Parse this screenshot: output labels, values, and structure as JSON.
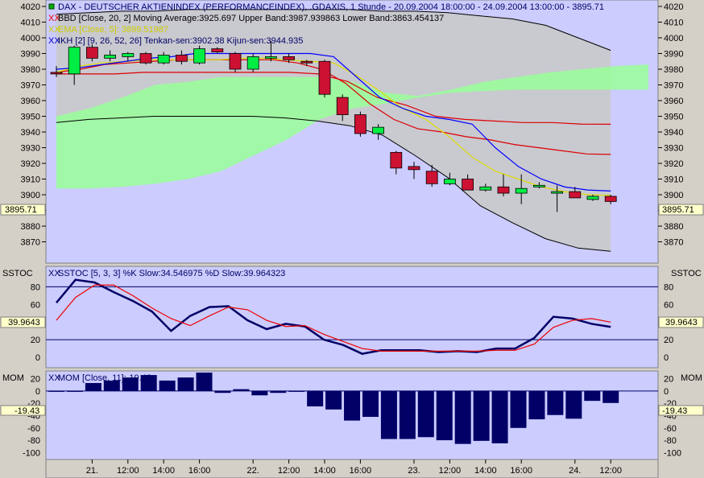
{
  "colors": {
    "panel_bg": "#d4d0c8",
    "plot_bg": "#ccccff",
    "band_fill": "#c8c8c8",
    "cloud_fill": "#99ff99",
    "up_candle": "#00ee44",
    "down_candle": "#cc1133",
    "stoch_k": "#000066",
    "stoch_d": "#ee0000",
    "mom_bar": "#000066",
    "tenkan": "#0000ff",
    "kijun": "#dd0000",
    "ema": "#dddd00",
    "price_highlight": "#ffffcc"
  },
  "main": {
    "panel_label": "",
    "legend_dax": "DAX - DEUTSCHER AKTIENINDEX (PERFORMANCEINDEX), .GDAXIS, 1 Stunde - 20.09.2004 18:00:00 - 24.09.2004 13:00:00 - 3895.71",
    "legend_bbd": "BBD [Close, 20, 2] Moving Average:3925.697 Upper Band:3987.939863 Lower Band:3863.454137",
    "legend_ema": "EMA [Close, 5]: 3899.51987",
    "legend_ikh": "IKH [2] [9, 26, 52, 26] Tenkan-sen:3902.38 Kijun-sen:3944.935",
    "price_marker": "3895.71"
  },
  "sstoc": {
    "panel_label": "SSTOC",
    "legend": "SSTOC [5, 3, 3] %K Slow:34.546975 %D Slow:39.964323",
    "value_marker": "39.9643"
  },
  "mom": {
    "panel_label": "MOM",
    "legend": "MOM [Close, 11]:-19.43",
    "value_marker": "-19.43"
  },
  "chart_data": [
    {
      "type": "candlestick",
      "title": "DAX - DEUTSCHER AKTIENINDEX (PERFORMANCEINDEX), .GDAXIS, 1 Stunde",
      "ylim": [
        3860,
        4020
      ],
      "yticks": [
        3870,
        3880,
        3890,
        3900,
        3910,
        3920,
        3930,
        3940,
        3950,
        3960,
        3970,
        3980,
        3990,
        4000,
        4010,
        4020
      ],
      "x_ticks": [
        "21.",
        "12:00",
        "14:00",
        "16:00",
        "22.",
        "12:00",
        "14:00",
        "16:00",
        "23.",
        "12:00",
        "14:00",
        "16:00",
        "24.",
        "12:00"
      ],
      "candles": [
        {
          "o": 3978,
          "h": 3982,
          "l": 3975,
          "c": 3977
        },
        {
          "o": 3977,
          "h": 3995,
          "l": 3970,
          "c": 3994
        },
        {
          "o": 3994,
          "h": 3996,
          "l": 3985,
          "c": 3987
        },
        {
          "o": 3987,
          "h": 3992,
          "l": 3985,
          "c": 3989
        },
        {
          "o": 3988,
          "h": 3991,
          "l": 3985,
          "c": 3990
        },
        {
          "o": 3990,
          "h": 3991,
          "l": 3983,
          "c": 3984
        },
        {
          "o": 3984,
          "h": 3991,
          "l": 3983,
          "c": 3989
        },
        {
          "o": 3989,
          "h": 3992,
          "l": 3983,
          "c": 3985
        },
        {
          "o": 3984,
          "h": 3995,
          "l": 3983,
          "c": 3993
        },
        {
          "o": 3993,
          "h": 3994,
          "l": 3990,
          "c": 3991
        },
        {
          "o": 3990,
          "h": 3991,
          "l": 3978,
          "c": 3980
        },
        {
          "o": 3980,
          "h": 3990,
          "l": 3978,
          "c": 3988
        },
        {
          "o": 3988,
          "h": 3998,
          "l": 3985,
          "c": 3988
        },
        {
          "o": 3988,
          "h": 3990,
          "l": 3984,
          "c": 3986
        },
        {
          "o": 3985,
          "h": 3986,
          "l": 3982,
          "c": 3984
        },
        {
          "o": 3985,
          "h": 3986,
          "l": 3962,
          "c": 3964
        },
        {
          "o": 3962,
          "h": 3964,
          "l": 3947,
          "c": 3951
        },
        {
          "o": 3951,
          "h": 3953,
          "l": 3937,
          "c": 3939
        },
        {
          "o": 3939,
          "h": 3945,
          "l": 3935,
          "c": 3943
        },
        {
          "o": 3927,
          "h": 3928,
          "l": 3913,
          "c": 3917
        },
        {
          "o": 3918,
          "h": 3921,
          "l": 3910,
          "c": 3916
        },
        {
          "o": 3915,
          "h": 3919,
          "l": 3905,
          "c": 3907
        },
        {
          "o": 3907,
          "h": 3914,
          "l": 3906,
          "c": 3910
        },
        {
          "o": 3910,
          "h": 3913,
          "l": 3903,
          "c": 3903
        },
        {
          "o": 3903,
          "h": 3907,
          "l": 3902,
          "c": 3905
        },
        {
          "o": 3905,
          "h": 3913,
          "l": 3899,
          "c": 3901
        },
        {
          "o": 3901,
          "h": 3913,
          "l": 3894,
          "c": 3904
        },
        {
          "o": 3905,
          "h": 3908,
          "l": 3904,
          "c": 3906
        },
        {
          "o": 3901,
          "h": 3906,
          "l": 3889,
          "c": 3902
        },
        {
          "o": 3902,
          "h": 3905,
          "l": 3898,
          "c": 3898
        },
        {
          "o": 3897,
          "h": 3900,
          "l": 3896,
          "c": 3899
        },
        {
          "o": 3899,
          "h": 3900,
          "l": 3894,
          "c": 3895.71
        }
      ],
      "upper_band": [
        4015,
        4016,
        4017,
        4017,
        4018,
        4018,
        4018,
        4018,
        4018,
        4018,
        4017,
        4017,
        4016,
        4014,
        4012,
        4008,
        4000,
        3992
      ],
      "lower_band": [
        3946,
        3948,
        3949,
        3950,
        3950,
        3950,
        3950,
        3949,
        3947,
        3944,
        3938,
        3925,
        3911,
        3893,
        3882,
        3872,
        3866,
        3864
      ],
      "moving_average": [
        3978,
        3980,
        3983,
        3984,
        3985,
        3986,
        3986,
        3986,
        3986,
        3986,
        3984,
        3980,
        3971,
        3958,
        3948,
        3942,
        3940,
        3937,
        3935,
        3932,
        3930,
        3928,
        3926,
        3925.697
      ],
      "ema": [
        3978,
        3982,
        3984,
        3985,
        3986,
        3986,
        3986,
        3986,
        3987,
        3987,
        3986,
        3985,
        3984,
        3976,
        3966,
        3955,
        3948,
        3937,
        3924,
        3915,
        3910,
        3905,
        3902,
        3900,
        3899.52
      ],
      "tenkan": [
        3980,
        3981,
        3983,
        3985,
        3987,
        3988,
        3990,
        3990,
        3990,
        3990,
        3990,
        3990,
        3988,
        3975,
        3962,
        3955,
        3950,
        3948,
        3945,
        3930,
        3918,
        3910,
        3905,
        3903,
        3902.38
      ],
      "kijun": [
        3977,
        3977,
        3977,
        3978,
        3978,
        3978,
        3978,
        3978,
        3978,
        3977,
        3972,
        3962,
        3957,
        3950,
        3948,
        3947,
        3946,
        3946,
        3945,
        3944.935
      ],
      "cloud_span_a": [
        3950,
        3955,
        3962,
        3970,
        3972,
        3975,
        3975,
        3975,
        3975,
        3972,
        3965,
        3963,
        3967,
        3972,
        3975,
        3978,
        3980,
        3982,
        3983
      ],
      "cloud_span_b": [
        3904,
        3904,
        3905,
        3907,
        3910,
        3915,
        3925,
        3935,
        3948,
        3955,
        3958,
        3962,
        3965,
        3966,
        3967,
        3967,
        3967,
        3967,
        3967
      ]
    },
    {
      "type": "line",
      "title": "SSTOC [5, 3, 3] %K Slow:34.546975 %D Slow:39.964323",
      "ylim": [
        -10,
        95
      ],
      "yticks": [
        0,
        20,
        40,
        60,
        80
      ],
      "reference_lines": [
        20,
        80
      ],
      "series": [
        {
          "name": "%K Slow",
          "values": [
            62,
            88,
            85,
            74,
            64,
            52,
            30,
            47,
            57,
            58,
            42,
            32,
            38,
            35,
            20,
            14,
            4,
            8,
            8,
            8,
            6,
            7,
            6,
            10,
            10,
            22,
            46,
            44,
            38,
            34.55
          ]
        },
        {
          "name": "%D Slow",
          "values": [
            42,
            68,
            82,
            82,
            70,
            56,
            44,
            36,
            47,
            57,
            54,
            42,
            35,
            36,
            26,
            18,
            10,
            7,
            7,
            7,
            7,
            7,
            7,
            8,
            8,
            15,
            34,
            42,
            44,
            39.96
          ]
        }
      ]
    },
    {
      "type": "bar",
      "title": "MOM [Close, 11]:-19.43",
      "ylim": [
        -110,
        30
      ],
      "yticks": [
        20,
        0,
        -20,
        -40,
        -60,
        -80,
        -100
      ],
      "values": [
        0,
        0,
        13,
        17,
        22,
        26,
        17,
        22,
        30,
        -3,
        3,
        -7,
        -3,
        0,
        -25,
        -30,
        -48,
        -42,
        -78,
        -78,
        -75,
        -80,
        -86,
        -81,
        -85,
        -60,
        -46,
        -39,
        -45,
        -16,
        -19.43
      ]
    }
  ]
}
